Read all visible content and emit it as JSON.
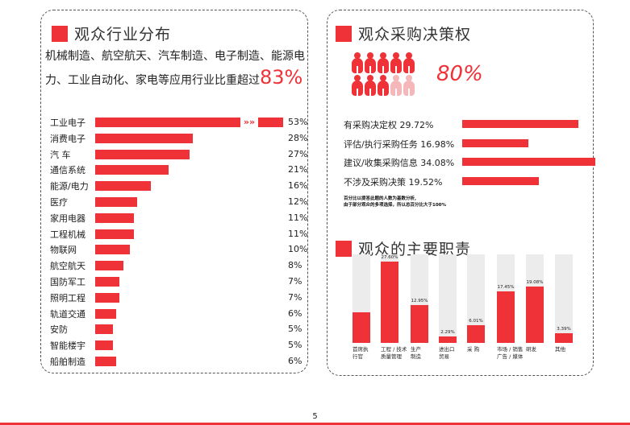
{
  "industry": {
    "title": "观众行业分布",
    "intro": "机械制造、航空航天、汽车制造、电子制造、能源电力、工业自动化、家电等应用行业比重超过",
    "highlight": "83%",
    "rows": [
      {
        "label": "工业电子",
        "value": 53,
        "pct": "53%"
      },
      {
        "label": "消费电子",
        "value": 28,
        "pct": "28%"
      },
      {
        "label": "汽 车",
        "value": 27,
        "pct": "27%"
      },
      {
        "label": "通信系统",
        "value": 21,
        "pct": "21%"
      },
      {
        "label": "能源/电力",
        "value": 16,
        "pct": "16%"
      },
      {
        "label": "医疗",
        "value": 12,
        "pct": "12%"
      },
      {
        "label": "家用电器",
        "value": 11,
        "pct": "11%"
      },
      {
        "label": "工程机械",
        "value": 11,
        "pct": "11%"
      },
      {
        "label": "物联网",
        "value": 10,
        "pct": "10%"
      },
      {
        "label": "航空航天",
        "value": 8,
        "pct": "8%"
      },
      {
        "label": "国防军工",
        "value": 7,
        "pct": "7%"
      },
      {
        "label": "照明工程",
        "value": 7,
        "pct": "7%"
      },
      {
        "label": "轨道交通",
        "value": 6,
        "pct": "6%"
      },
      {
        "label": "安防",
        "value": 5,
        "pct": "5%"
      },
      {
        "label": "智能楼宇",
        "value": 5,
        "pct": "5%"
      },
      {
        "label": "船舶制造",
        "value": 6,
        "pct": "6%"
      }
    ],
    "arrow": "»»",
    "bar_color": "#ee3237"
  },
  "decision": {
    "title": "观众采购决策权",
    "big_value": "80%",
    "people_total": 10,
    "people_highlighted": 8,
    "rows": [
      {
        "label": "有采购决定权 29.72%",
        "value": 29.72
      },
      {
        "label": "评估/执行采购任务 16.98%",
        "value": 16.98
      },
      {
        "label": "建议/收集采购信息 34.08%",
        "value": 34.08
      },
      {
        "label": "不涉及采购决策 19.52%",
        "value": 19.52
      }
    ],
    "note_line1": "百分比以提答此题的人数为基数分析,",
    "note_line2": "由于部分观众的多项选择，所以总百分比大于100%"
  },
  "roles": {
    "title": "观众的主要职责",
    "columns": [
      {
        "category": "首席执行官",
        "cat_line1": "首席执",
        "cat_line2": "行官",
        "value": 10.47,
        "label": ""
      },
      {
        "category": "工程/技术质量管理",
        "cat_line1": "工程 / 技术",
        "cat_line2": "质量管理",
        "value": 27.6,
        "label": "27.60%"
      },
      {
        "category": "生产制造",
        "cat_line1": "生产",
        "cat_line2": "制造",
        "value": 12.95,
        "label": "12.95%"
      },
      {
        "category": "进出口贸易",
        "cat_line1": "进出口",
        "cat_line2": "贸易",
        "value": 2.29,
        "label": "2.29%"
      },
      {
        "category": "采购",
        "cat_line1": "采 购",
        "cat_line2": "",
        "value": 6.01,
        "label": "6.01%"
      },
      {
        "category": "市场/销售广告/媒体",
        "cat_line1": "市场 / 销售",
        "cat_line2": "广告 / 媒体",
        "value": 17.45,
        "label": "17.45%"
      },
      {
        "category": "研发",
        "cat_line1": "研发",
        "cat_line2": "",
        "value": 19.08,
        "label": "19.08%"
      },
      {
        "category": "其他",
        "cat_line1": "其他",
        "cat_line2": "",
        "value": 3.39,
        "label": "3.39%"
      }
    ]
  },
  "page_number": "5",
  "colors": {
    "accent": "#ee3237",
    "track": "#ececec",
    "faded": "#f5b7b9"
  }
}
